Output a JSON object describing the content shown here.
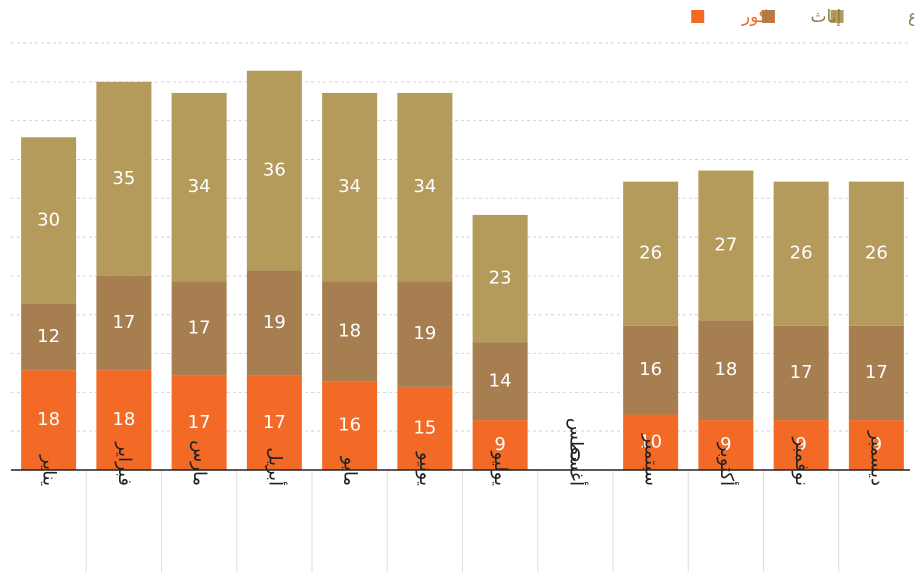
{
  "chart_data": {
    "type": "stacked_bar",
    "categories": [
      "يناير",
      "فبراير",
      "مارس",
      "أبريل",
      "مايو",
      "يونيو",
      "يوليو",
      "أغسطس",
      "سبتمبر",
      "أكتوبر",
      "نوفمبر",
      "ديسمبر"
    ],
    "series": [
      {
        "name": "ذكور",
        "color": "#f26a25",
        "values": [
          18,
          18,
          17,
          17,
          16,
          15,
          9,
          0,
          10,
          9,
          9,
          9
        ]
      },
      {
        "name": "إناث",
        "color": "#a77e50",
        "values": [
          12,
          17,
          17,
          19,
          18,
          19,
          14,
          null,
          16,
          18,
          17,
          17
        ]
      },
      {
        "name": "المجموع",
        "color": "#b49b5c",
        "values": [
          30,
          35,
          34,
          36,
          34,
          34,
          23,
          null,
          26,
          27,
          26,
          26
        ]
      }
    ],
    "ylim": [
      0,
      77
    ],
    "yticks": [
      0,
      7,
      14,
      21,
      28,
      35,
      42,
      49,
      56,
      63,
      70,
      77
    ],
    "grid": true,
    "legend": "top-right"
  }
}
